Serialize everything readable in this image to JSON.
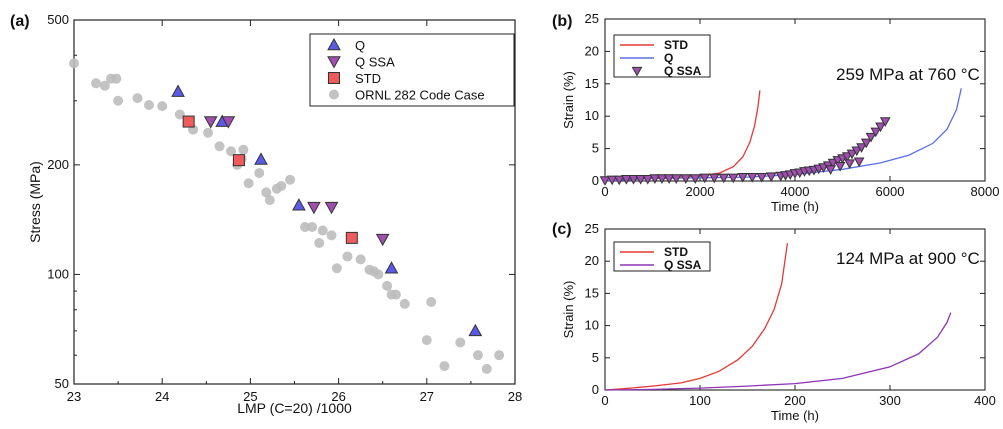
{
  "chart_data": [
    {
      "panel": "(a)",
      "type": "scatter",
      "xlabel": "LMP (C=20) /1000",
      "ylabel": "Stress (MPa)",
      "xlim": [
        23,
        28
      ],
      "ylim": [
        50,
        500
      ],
      "yscale": "log",
      "x_ticks": [
        "23",
        "24",
        "25",
        "26",
        "27",
        "28"
      ],
      "y_ticks": [
        {
          "v": 50,
          "label": "50"
        },
        {
          "v": 100,
          "label": "100"
        },
        {
          "v": 200,
          "label": "200"
        },
        {
          "v": 500,
          "label": "500"
        }
      ],
      "legend_position": "top-right",
      "series": [
        {
          "name": "Q",
          "marker": "triangle-up",
          "color": "#5a5ae6",
          "points": [
            [
              24.18,
              318
            ],
            [
              24.68,
              263
            ],
            [
              25.12,
              207
            ],
            [
              25.55,
              155
            ],
            [
              26.6,
              104
            ],
            [
              27.55,
              70
            ]
          ]
        },
        {
          "name": "Q SSA",
          "marker": "triangle-down",
          "color": "#a04fb0",
          "points": [
            [
              24.55,
              263
            ],
            [
              24.75,
              263
            ],
            [
              25.72,
              153
            ],
            [
              25.92,
              153
            ],
            [
              26.5,
              125
            ]
          ]
        },
        {
          "name": "STD",
          "marker": "square",
          "color": "#ef5b5b",
          "points": [
            [
              24.3,
              263
            ],
            [
              24.87,
              206
            ],
            [
              26.15,
              126
            ]
          ]
        },
        {
          "name": "ORNL 282 Code Case",
          "marker": "circle",
          "color": "#bdbdbd",
          "points": [
            [
              23.0,
              380
            ],
            [
              23.25,
              335
            ],
            [
              23.35,
              330
            ],
            [
              23.42,
              345
            ],
            [
              23.48,
              345
            ],
            [
              23.5,
              300
            ],
            [
              23.72,
              305
            ],
            [
              23.85,
              292
            ],
            [
              24.0,
              290
            ],
            [
              24.2,
              275
            ],
            [
              24.35,
              250
            ],
            [
              24.52,
              245
            ],
            [
              24.65,
              225
            ],
            [
              24.78,
              218
            ],
            [
              24.85,
              200
            ],
            [
              24.9,
              208
            ],
            [
              24.92,
              220
            ],
            [
              24.98,
              178
            ],
            [
              25.1,
              190
            ],
            [
              25.18,
              168
            ],
            [
              25.22,
              160
            ],
            [
              25.3,
              172
            ],
            [
              25.35,
              175
            ],
            [
              25.45,
              182
            ],
            [
              25.62,
              135
            ],
            [
              25.7,
              135
            ],
            [
              25.78,
              122
            ],
            [
              25.82,
              132
            ],
            [
              25.92,
              128
            ],
            [
              25.98,
              104
            ],
            [
              26.1,
              112
            ],
            [
              26.25,
              110
            ],
            [
              26.35,
              103
            ],
            [
              26.4,
              102
            ],
            [
              26.45,
              100
            ],
            [
              26.55,
              93
            ],
            [
              26.6,
              88
            ],
            [
              26.65,
              88
            ],
            [
              26.75,
              83
            ],
            [
              27.0,
              66
            ],
            [
              27.05,
              84
            ],
            [
              27.2,
              56
            ],
            [
              27.38,
              65
            ],
            [
              27.58,
              60
            ],
            [
              27.68,
              55
            ],
            [
              27.82,
              60
            ]
          ]
        }
      ]
    },
    {
      "panel": "(b)",
      "type": "line",
      "annotation": "259 MPa at 760 °C",
      "xlabel": "Time (h)",
      "ylabel": "Strain (%)",
      "xlim": [
        0,
        8000
      ],
      "ylim": [
        0,
        25
      ],
      "x_ticks": [
        "0",
        "2000",
        "4000",
        "6000",
        "8000"
      ],
      "y_ticks": [
        "0",
        "5",
        "10",
        "15",
        "20",
        "25"
      ],
      "legend_position": "top-left",
      "series": [
        {
          "name": "STD",
          "style": "line",
          "color": "#e53935",
          "points": [
            [
              0,
              0
            ],
            [
              500,
              0.3
            ],
            [
              1000,
              0.5
            ],
            [
              1500,
              0.6
            ],
            [
              2000,
              0.8
            ],
            [
              2400,
              1.2
            ],
            [
              2700,
              2.2
            ],
            [
              2900,
              3.7
            ],
            [
              3050,
              6.0
            ],
            [
              3150,
              8.5
            ],
            [
              3220,
              11.5
            ],
            [
              3260,
              14.0
            ]
          ]
        },
        {
          "name": "Q",
          "style": "line",
          "color": "#5b6ee8",
          "points": [
            [
              0,
              0
            ],
            [
              1000,
              0.4
            ],
            [
              2000,
              0.5
            ],
            [
              3000,
              0.6
            ],
            [
              4000,
              1.0
            ],
            [
              5000,
              1.8
            ],
            [
              5800,
              2.8
            ],
            [
              6400,
              4.0
            ],
            [
              6900,
              5.8
            ],
            [
              7200,
              8.0
            ],
            [
              7400,
              11.0
            ],
            [
              7500,
              14.3
            ]
          ]
        },
        {
          "name": "Q SSA",
          "style": "marker-triangle-down",
          "color": "#a04fb0",
          "points": [
            [
              0,
              0.1
            ],
            [
              150,
              0.2
            ],
            [
              300,
              0.2
            ],
            [
              450,
              0.3
            ],
            [
              600,
              0.3
            ],
            [
              750,
              0.3
            ],
            [
              900,
              0.3
            ],
            [
              1050,
              0.4
            ],
            [
              1200,
              0.4
            ],
            [
              1350,
              0.4
            ],
            [
              1500,
              0.4
            ],
            [
              1700,
              0.4
            ],
            [
              1900,
              0.4
            ],
            [
              2100,
              0.5
            ],
            [
              2300,
              0.5
            ],
            [
              2500,
              0.5
            ],
            [
              2700,
              0.5
            ],
            [
              2900,
              0.6
            ],
            [
              3100,
              0.6
            ],
            [
              3300,
              0.6
            ],
            [
              3500,
              0.7
            ],
            [
              3700,
              0.8
            ],
            [
              3800,
              0.9
            ],
            [
              3900,
              1.0
            ],
            [
              4000,
              1.2
            ],
            [
              4100,
              1.3
            ],
            [
              4200,
              1.5
            ],
            [
              4300,
              1.6
            ],
            [
              4400,
              1.7
            ],
            [
              4500,
              1.9
            ],
            [
              4600,
              2.1
            ],
            [
              4700,
              2.4
            ],
            [
              4800,
              2.8
            ],
            [
              4900,
              3.2
            ],
            [
              5000,
              3.5
            ],
            [
              5100,
              3.8
            ],
            [
              5200,
              4.2
            ],
            [
              5300,
              4.7
            ],
            [
              5400,
              5.2
            ],
            [
              5500,
              5.9
            ],
            [
              5600,
              6.8
            ],
            [
              5700,
              7.6
            ],
            [
              5800,
              8.4
            ],
            [
              5900,
              9.2
            ],
            [
              5350,
              3.0
            ],
            [
              5150,
              2.7
            ],
            [
              4950,
              2.3
            ],
            [
              4750,
              1.8
            ]
          ]
        }
      ]
    },
    {
      "panel": "(c)",
      "type": "line",
      "annotation": "124 MPa at 900 °C",
      "xlabel": "Time (h)",
      "ylabel": "Strain (%)",
      "xlim": [
        0,
        400
      ],
      "ylim": [
        0,
        25
      ],
      "x_ticks": [
        "0",
        "100",
        "200",
        "300",
        "400"
      ],
      "y_ticks": [
        "0",
        "5",
        "10",
        "15",
        "20",
        "25"
      ],
      "legend_position": "top-left",
      "series": [
        {
          "name": "STD",
          "style": "line",
          "color": "#e53935",
          "points": [
            [
              0,
              0
            ],
            [
              20,
              0.2
            ],
            [
              50,
              0.6
            ],
            [
              80,
              1.1
            ],
            [
              100,
              1.8
            ],
            [
              120,
              2.9
            ],
            [
              140,
              4.7
            ],
            [
              155,
              6.8
            ],
            [
              168,
              9.5
            ],
            [
              178,
              12.5
            ],
            [
              186,
              16.5
            ],
            [
              192,
              22.8
            ]
          ]
        },
        {
          "name": "Q SSA",
          "style": "line",
          "color": "#8e35b5",
          "points": [
            [
              0,
              0
            ],
            [
              50,
              0.1
            ],
            [
              100,
              0.3
            ],
            [
              150,
              0.6
            ],
            [
              200,
              1.0
            ],
            [
              250,
              1.8
            ],
            [
              300,
              3.6
            ],
            [
              330,
              5.6
            ],
            [
              350,
              8.2
            ],
            [
              360,
              10.5
            ],
            [
              364,
              12.0
            ]
          ]
        }
      ]
    }
  ]
}
